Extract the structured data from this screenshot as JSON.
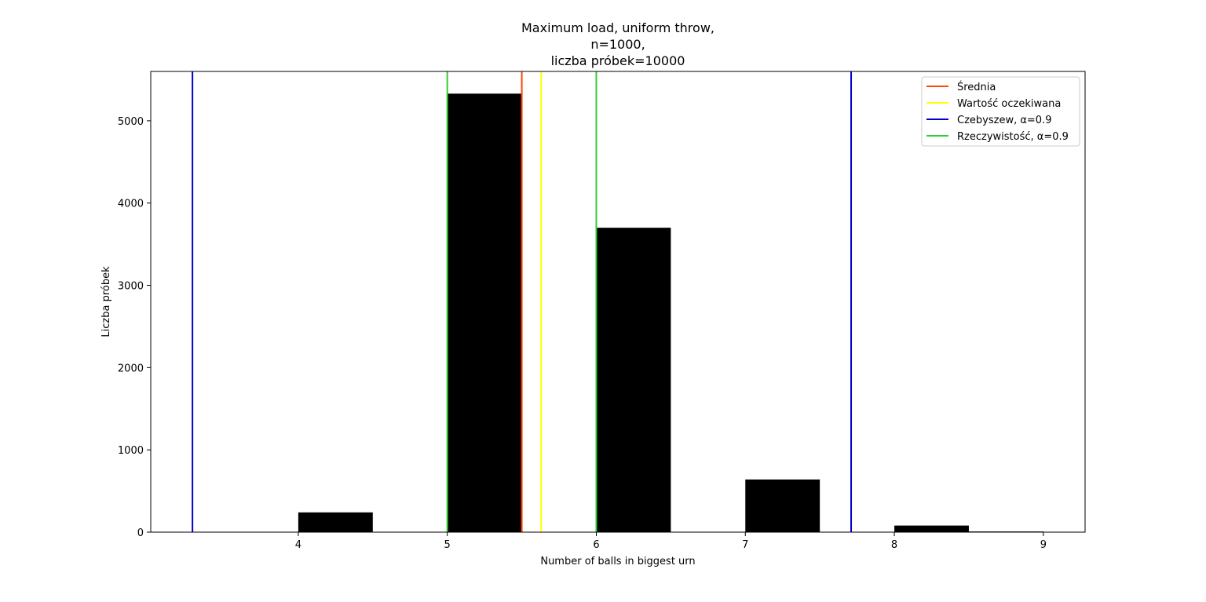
{
  "chart_data": {
    "type": "bar",
    "title_lines": [
      "Maximum load, uniform throw,",
      "n=1000,",
      "liczba próbek=10000"
    ],
    "xlabel": "Number of balls in biggest urn",
    "ylabel": "Liczba próbek",
    "xlim": [
      3.01,
      9.28
    ],
    "ylim": [
      0,
      5600
    ],
    "xticks": [
      4,
      5,
      6,
      7,
      8,
      9
    ],
    "yticks": [
      0,
      1000,
      2000,
      3000,
      4000,
      5000
    ],
    "bars": [
      {
        "x0": 4.0,
        "x1": 4.5,
        "value": 240
      },
      {
        "x0": 5.0,
        "x1": 5.5,
        "value": 5330
      },
      {
        "x0": 6.0,
        "x1": 6.5,
        "value": 3700
      },
      {
        "x0": 7.0,
        "x1": 7.5,
        "value": 640
      },
      {
        "x0": 8.0,
        "x1": 8.5,
        "value": 80
      },
      {
        "x0": 8.5,
        "x1": 9.0,
        "value": 8
      }
    ],
    "bar_color": "#000000",
    "vlines": [
      {
        "x": 5.5,
        "color": "#ff4500",
        "legend": 0
      },
      {
        "x": 5.63,
        "color": "#ffff00",
        "legend": 1
      },
      {
        "x": 3.29,
        "color": "#0000cd",
        "legend": 2
      },
      {
        "x": 7.71,
        "color": "#0000cd",
        "legend": 2
      },
      {
        "x": 5.0,
        "color": "#32cd32",
        "legend": 3
      },
      {
        "x": 6.0,
        "color": "#32cd32",
        "legend": 3
      }
    ],
    "legend": {
      "position": "top-right",
      "entries": [
        {
          "label": "Średnia",
          "color": "#ff4500"
        },
        {
          "label": "Wartość oczekiwana",
          "color": "#ffff00"
        },
        {
          "label": "Czebyszew, α=0.9",
          "color": "#0000cd"
        },
        {
          "label": "Rzeczywistość, α=0.9",
          "color": "#32cd32"
        }
      ]
    }
  }
}
